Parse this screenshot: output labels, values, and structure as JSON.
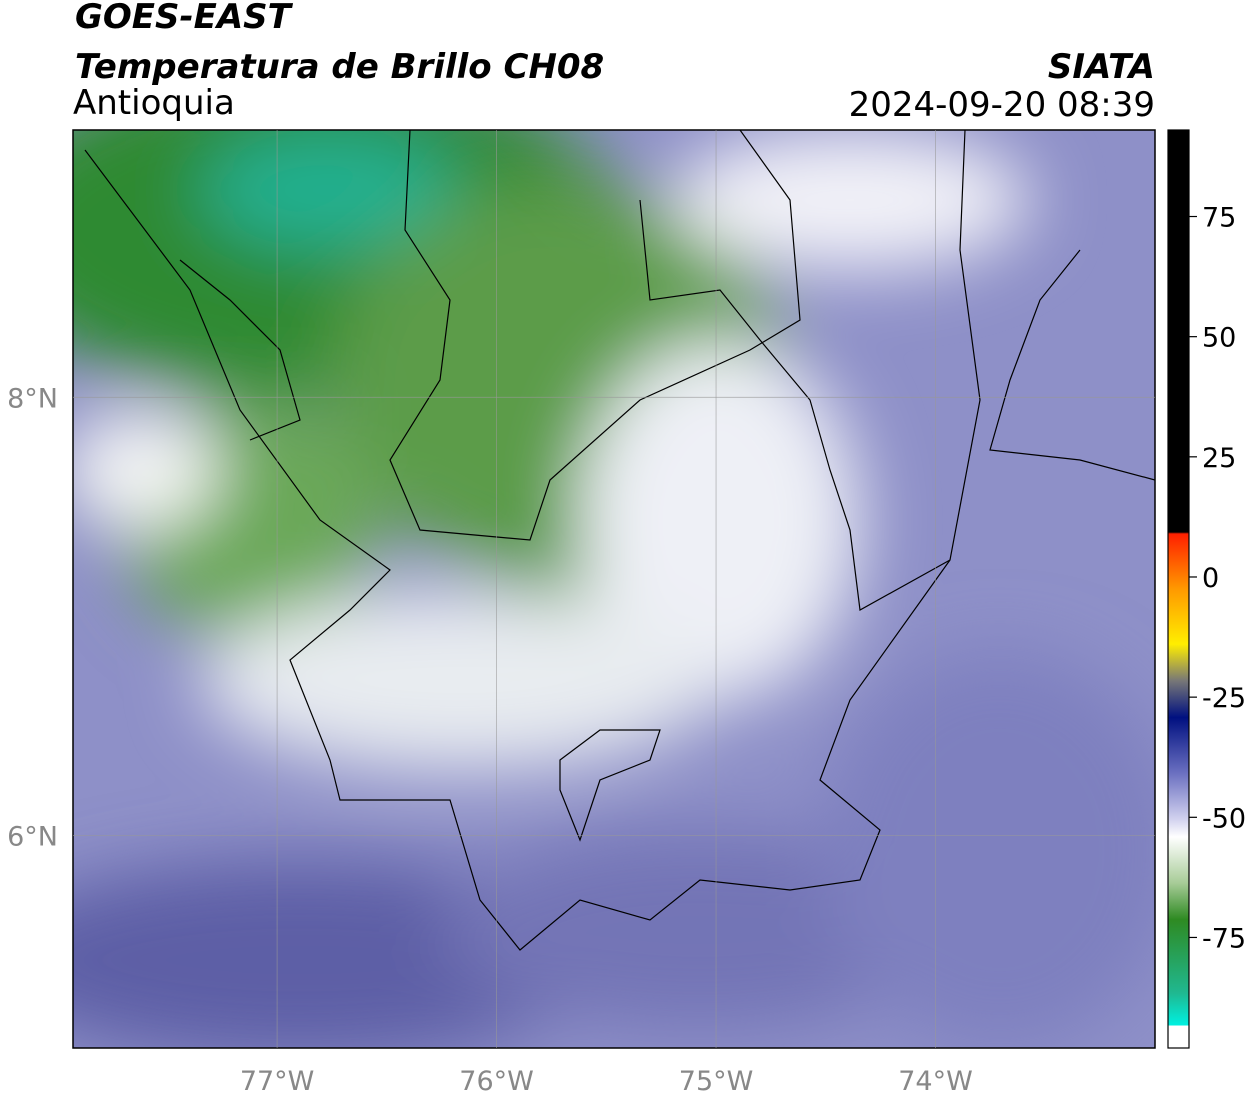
{
  "header": {
    "title": "GOES-EAST",
    "subtitle": "Temperatura de Brillo CH08",
    "region": "Antioquia",
    "organization": "SIATA",
    "datetime": "2024-09-20 08:39"
  },
  "map": {
    "xlim": [
      -77.93,
      -73.0
    ],
    "ylim": [
      5.03,
      9.22
    ],
    "xticks": [
      {
        "value": -77,
        "label": "77°W"
      },
      {
        "value": -76,
        "label": "76°W"
      },
      {
        "value": -75,
        "label": "75°W"
      },
      {
        "value": -74,
        "label": "74°W"
      }
    ],
    "yticks": [
      {
        "value": 8,
        "label": "8°N"
      },
      {
        "value": 6,
        "label": "6°N"
      }
    ],
    "grid": true
  },
  "colorbar": {
    "lim": [
      -98,
      93
    ],
    "ticks": [
      75,
      50,
      25,
      0,
      -25,
      -50,
      -75
    ]
  }
}
